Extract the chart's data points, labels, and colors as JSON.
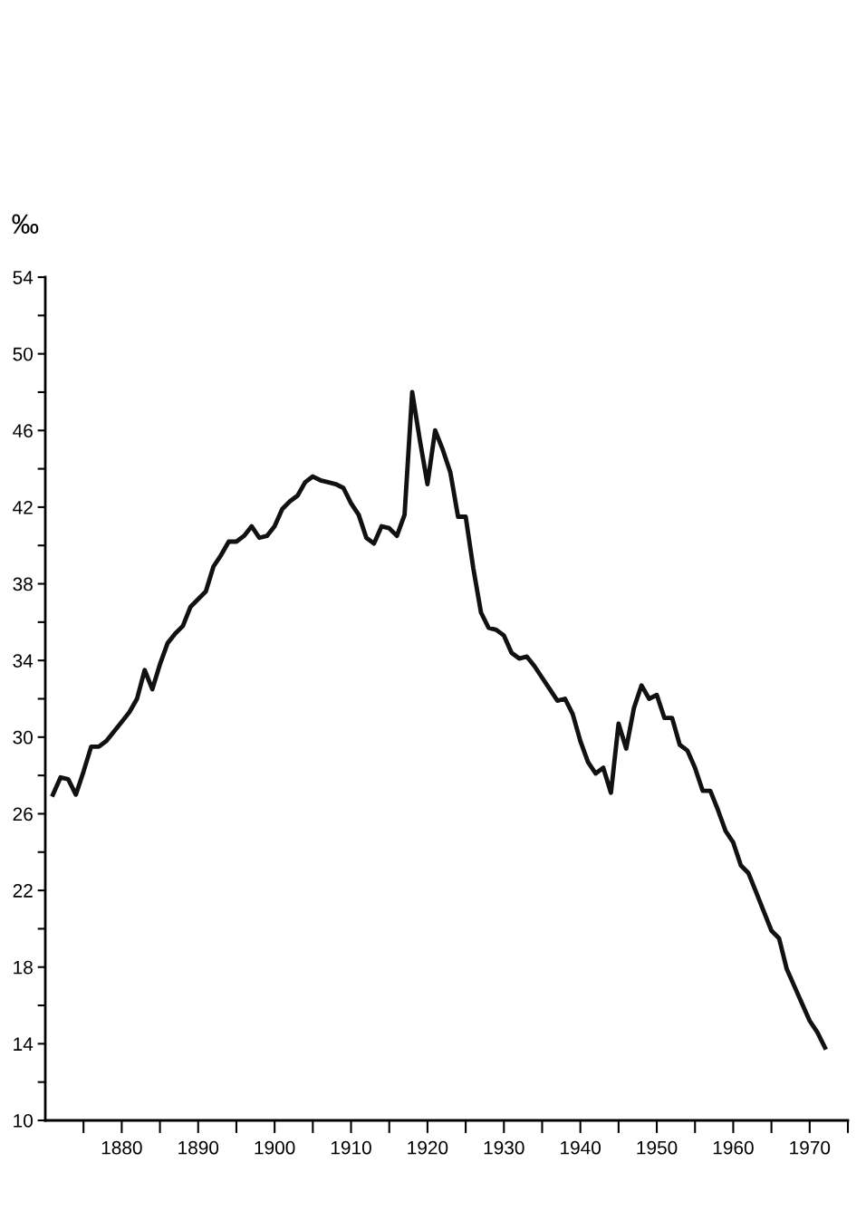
{
  "chart_data": {
    "type": "line",
    "ylabel": "‰",
    "x": [
      1871,
      1872,
      1873,
      1874,
      1875,
      1876,
      1877,
      1878,
      1879,
      1880,
      1881,
      1882,
      1883,
      1884,
      1885,
      1886,
      1887,
      1888,
      1889,
      1890,
      1891,
      1892,
      1893,
      1894,
      1895,
      1896,
      1897,
      1898,
      1899,
      1900,
      1901,
      1902,
      1903,
      1904,
      1905,
      1906,
      1907,
      1908,
      1909,
      1910,
      1911,
      1912,
      1913,
      1914,
      1915,
      1916,
      1917,
      1918,
      1919,
      1920,
      1921,
      1922,
      1923,
      1924,
      1925,
      1926,
      1927,
      1928,
      1929,
      1930,
      1931,
      1932,
      1933,
      1934,
      1935,
      1936,
      1937,
      1938,
      1939,
      1940,
      1941,
      1942,
      1943,
      1944,
      1945,
      1946,
      1947,
      1948,
      1949,
      1950,
      1951,
      1952,
      1953,
      1954,
      1955,
      1956,
      1957,
      1958,
      1959,
      1960,
      1961,
      1962,
      1963,
      1964,
      1965,
      1966,
      1967,
      1968,
      1969,
      1970,
      1971,
      1972
    ],
    "series": [
      {
        "color": "#111111",
        "values": [
          27.0,
          27.9,
          27.8,
          27.0,
          28.2,
          29.5,
          29.5,
          29.8,
          30.3,
          30.8,
          31.3,
          32.0,
          33.5,
          32.5,
          33.8,
          34.9,
          35.4,
          35.8,
          36.8,
          37.2,
          37.6,
          38.9,
          39.5,
          40.2,
          40.2,
          40.5,
          41.0,
          40.4,
          40.5,
          41.0,
          41.9,
          42.3,
          42.6,
          43.3,
          43.6,
          43.4,
          43.3,
          43.2,
          43.0,
          42.2,
          41.6,
          40.4,
          40.1,
          41.0,
          40.9,
          40.5,
          41.6,
          48.0,
          45.5,
          43.2,
          46.0,
          45.0,
          43.8,
          41.5,
          41.5,
          38.8,
          36.5,
          35.7,
          35.6,
          35.3,
          34.4,
          34.1,
          34.2,
          33.7,
          33.1,
          32.5,
          31.9,
          32.0,
          31.2,
          29.8,
          28.7,
          28.1,
          28.4,
          27.1,
          30.7,
          29.4,
          31.5,
          32.7,
          32.0,
          32.2,
          31.0,
          31.0,
          29.6,
          29.3,
          28.4,
          27.2,
          27.2,
          26.2,
          25.1,
          24.5,
          23.3,
          22.9,
          21.9,
          20.9,
          19.9,
          19.5,
          17.9,
          17.0,
          16.1,
          15.2,
          14.6,
          13.8
        ]
      }
    ],
    "xlim": [
      1870,
      1975
    ],
    "xticks": [
      {
        "value": 1875,
        "label": null
      },
      1880,
      {
        "value": 1885,
        "label": null
      },
      1890,
      {
        "value": 1895,
        "label": null
      },
      1900,
      {
        "value": 1905,
        "label": null
      },
      1910,
      {
        "value": 1915,
        "label": null
      },
      1920,
      {
        "value": 1925,
        "label": null
      },
      1930,
      {
        "value": 1935,
        "label": null
      },
      1940,
      {
        "value": 1945,
        "label": null
      },
      1950,
      {
        "value": 1955,
        "label": null
      },
      1960,
      {
        "value": 1965,
        "label": null
      },
      1970,
      {
        "value": 1975,
        "label": null
      }
    ],
    "ylim": [
      10,
      54
    ],
    "yticks": [
      10,
      {
        "value": 12,
        "label": null
      },
      14,
      {
        "value": 16,
        "label": null
      },
      18,
      {
        "value": 20,
        "label": null
      },
      22,
      {
        "value": 24,
        "label": null
      },
      26,
      {
        "value": 28,
        "label": null
      },
      30,
      {
        "value": 32,
        "label": null
      },
      34,
      {
        "value": 36,
        "label": null
      },
      38,
      {
        "value": 40,
        "label": null
      },
      42,
      {
        "value": 44,
        "label": null
      },
      46,
      {
        "value": 48,
        "label": null
      },
      50,
      {
        "value": 52,
        "label": null
      },
      54
    ],
    "grid": false,
    "legend": false,
    "marker": "none",
    "line_style": "solid"
  }
}
